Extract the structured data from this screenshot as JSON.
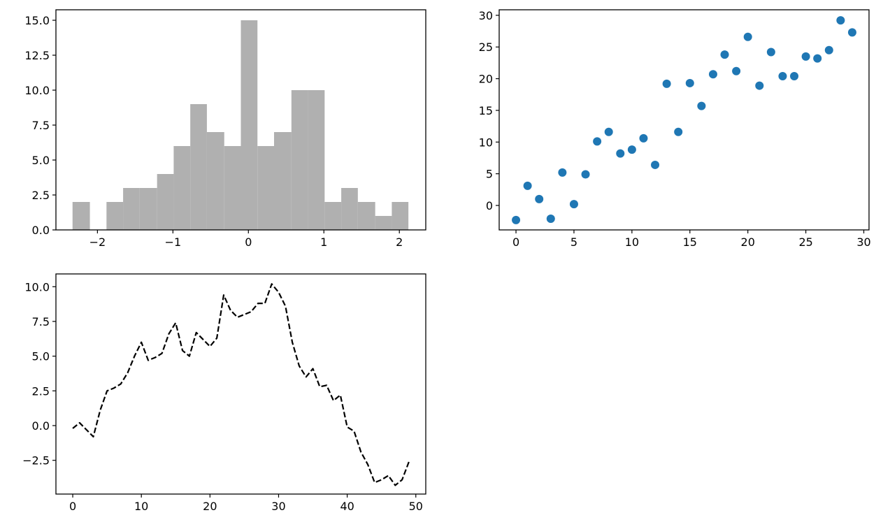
{
  "chart_data": [
    {
      "type": "bar",
      "subtype": "histogram",
      "color": "#b0b0b0",
      "bins": [
        {
          "x0": -2.33,
          "x1": -2.1,
          "count": 2
        },
        {
          "x0": -2.1,
          "x1": -1.88,
          "count": 0
        },
        {
          "x0": -1.88,
          "x1": -1.66,
          "count": 2
        },
        {
          "x0": -1.66,
          "x1": -1.44,
          "count": 3
        },
        {
          "x0": -1.44,
          "x1": -1.21,
          "count": 3
        },
        {
          "x0": -1.21,
          "x1": -0.99,
          "count": 4
        },
        {
          "x0": -0.99,
          "x1": -0.77,
          "count": 6
        },
        {
          "x0": -0.77,
          "x1": -0.55,
          "count": 9
        },
        {
          "x0": -0.55,
          "x1": -0.32,
          "count": 7
        },
        {
          "x0": -0.32,
          "x1": -0.1,
          "count": 6
        },
        {
          "x0": -0.1,
          "x1": 0.12,
          "count": 15
        },
        {
          "x0": 0.12,
          "x1": 0.34,
          "count": 6
        },
        {
          "x0": 0.34,
          "x1": 0.57,
          "count": 7
        },
        {
          "x0": 0.57,
          "x1": 0.79,
          "count": 10
        },
        {
          "x0": 0.79,
          "x1": 1.01,
          "count": 10
        },
        {
          "x0": 1.01,
          "x1": 1.23,
          "count": 2
        },
        {
          "x0": 1.23,
          "x1": 1.45,
          "count": 3
        },
        {
          "x0": 1.45,
          "x1": 1.68,
          "count": 2
        },
        {
          "x0": 1.68,
          "x1": 1.9,
          "count": 1
        },
        {
          "x0": 1.9,
          "x1": 2.12,
          "count": 2
        }
      ],
      "xlim": [
        -2.55,
        2.35
      ],
      "ylim": [
        0,
        15.75
      ],
      "xticks": [
        -2,
        -1,
        0,
        1,
        2
      ],
      "xtick_labels": [
        "−2",
        "−1",
        "0",
        "1",
        "2"
      ],
      "yticks": [
        0,
        2.5,
        5,
        7.5,
        10,
        12.5,
        15
      ],
      "ytick_labels": [
        "0.0",
        "2.5",
        "5.0",
        "7.5",
        "10.0",
        "12.5",
        "15.0"
      ],
      "title": "",
      "xlabel": "",
      "ylabel": "",
      "grid": false
    },
    {
      "type": "scatter",
      "color": "#1f77b4",
      "x": [
        0,
        1,
        2,
        3,
        4,
        5,
        6,
        7,
        8,
        9,
        10,
        11,
        12,
        13,
        14,
        15,
        16,
        17,
        18,
        19,
        20,
        21,
        22,
        23,
        24,
        25,
        26,
        27,
        28,
        29
      ],
      "y": [
        -2.3,
        3.1,
        1.0,
        -2.1,
        5.2,
        0.2,
        4.9,
        10.1,
        11.6,
        8.2,
        8.8,
        10.6,
        6.4,
        19.2,
        11.6,
        19.3,
        15.7,
        20.7,
        23.8,
        21.2,
        26.6,
        18.9,
        24.2,
        20.4,
        20.4,
        23.5,
        23.2,
        24.5,
        29.2,
        27.3
      ],
      "xlim": [
        -1.45,
        30.45
      ],
      "ylim": [
        -3.86,
        30.87
      ],
      "xticks": [
        0,
        5,
        10,
        15,
        20,
        25,
        30
      ],
      "xtick_labels": [
        "0",
        "5",
        "10",
        "15",
        "20",
        "25",
        "30"
      ],
      "yticks": [
        0,
        5,
        10,
        15,
        20,
        25,
        30
      ],
      "ytick_labels": [
        "0",
        "5",
        "10",
        "15",
        "20",
        "25",
        "30"
      ],
      "title": "",
      "xlabel": "",
      "ylabel": "",
      "grid": false
    },
    {
      "type": "line",
      "color": "#000000",
      "linestyle": "dashed",
      "x": [
        0,
        1,
        2,
        3,
        4,
        5,
        6,
        7,
        8,
        9,
        10,
        11,
        12,
        13,
        14,
        15,
        16,
        17,
        18,
        19,
        20,
        21,
        22,
        23,
        24,
        25,
        26,
        27,
        28,
        29,
        30,
        31,
        32,
        33,
        34,
        35,
        36,
        37,
        38,
        39,
        40,
        41,
        42,
        43,
        44,
        45,
        46,
        47,
        48,
        49
      ],
      "y": [
        -0.2,
        0.2,
        -0.3,
        -0.8,
        1.1,
        2.5,
        2.7,
        3.0,
        3.8,
        5.0,
        6.0,
        4.7,
        4.9,
        5.2,
        6.6,
        7.4,
        5.4,
        5.0,
        6.7,
        6.2,
        5.7,
        6.3,
        9.4,
        8.3,
        7.8,
        8.0,
        8.2,
        8.8,
        8.8,
        10.2,
        9.6,
        8.6,
        6.0,
        4.3,
        3.5,
        4.1,
        2.8,
        2.9,
        1.8,
        2.2,
        -0.1,
        -0.4,
        -1.9,
        -2.8,
        -4.1,
        -3.9,
        -3.6,
        -4.3,
        -3.9,
        -2.6
      ],
      "xlim": [
        -2.45,
        51.45
      ],
      "ylim": [
        -4.93,
        10.92
      ],
      "xticks": [
        0,
        10,
        20,
        30,
        40,
        50
      ],
      "xtick_labels": [
        "0",
        "10",
        "20",
        "30",
        "40",
        "50"
      ],
      "yticks": [
        -2.5,
        0,
        2.5,
        5,
        7.5,
        10
      ],
      "ytick_labels": [
        "−2.5",
        "0.0",
        "2.5",
        "5.0",
        "7.5",
        "10.0"
      ],
      "title": "",
      "xlabel": "",
      "ylabel": "",
      "grid": false
    }
  ]
}
